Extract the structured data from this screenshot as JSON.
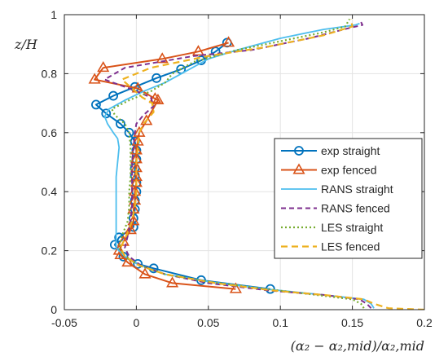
{
  "chart_data": {
    "type": "line",
    "xlabel": "(α₂ − α₂,mid)/α₂,mid",
    "ylabel": "z/H",
    "xlim": [
      -0.05,
      0.2
    ],
    "ylim": [
      0,
      1
    ],
    "xticks": [
      -0.05,
      0,
      0.05,
      0.1,
      0.15,
      0.2
    ],
    "xtick_labels": [
      "-0.05",
      "0",
      "0.05",
      "0.1",
      "0.15",
      "0.2"
    ],
    "yticks": [
      0,
      0.2,
      0.4,
      0.6,
      0.8,
      1
    ],
    "ytick_labels": [
      "0",
      "0.2",
      "0.4",
      "0.6",
      "0.8",
      "1"
    ],
    "grid": true,
    "legend_position": "center-right",
    "series": [
      {
        "name": "exp straight",
        "color": "#0072BD",
        "dash": "",
        "marker": "circle",
        "width": 2,
        "points": [
          [
            0.093,
            0.07
          ],
          [
            0.045,
            0.1
          ],
          [
            0.012,
            0.14
          ],
          [
            0.001,
            0.155
          ],
          [
            -0.009,
            0.18
          ],
          [
            -0.015,
            0.22
          ],
          [
            -0.012,
            0.245
          ],
          [
            -0.002,
            0.28
          ],
          [
            -0.002,
            0.31
          ],
          [
            -0.001,
            0.34
          ],
          [
            -0.001,
            0.37
          ],
          [
            0,
            0.4
          ],
          [
            0,
            0.43
          ],
          [
            -0.001,
            0.455
          ],
          [
            -0.001,
            0.48
          ],
          [
            0,
            0.51
          ],
          [
            0,
            0.54
          ],
          [
            -0.001,
            0.57
          ],
          [
            -0.005,
            0.6
          ],
          [
            -0.011,
            0.63
          ],
          [
            -0.021,
            0.665
          ],
          [
            -0.028,
            0.695
          ],
          [
            -0.016,
            0.725
          ],
          [
            -0.001,
            0.755
          ],
          [
            0.014,
            0.785
          ],
          [
            0.031,
            0.815
          ],
          [
            0.045,
            0.845
          ],
          [
            0.055,
            0.875
          ],
          [
            0.063,
            0.905
          ]
        ]
      },
      {
        "name": "exp fenced",
        "color": "#D95319",
        "dash": "",
        "marker": "triangle",
        "width": 2,
        "points": [
          [
            0.069,
            0.07
          ],
          [
            0.025,
            0.09
          ],
          [
            0.006,
            0.12
          ],
          [
            -0.006,
            0.16
          ],
          [
            -0.011,
            0.185
          ],
          [
            -0.012,
            0.2
          ],
          [
            -0.009,
            0.23
          ],
          [
            -0.004,
            0.27
          ],
          [
            -0.002,
            0.3
          ],
          [
            -0.002,
            0.34
          ],
          [
            -0.001,
            0.37
          ],
          [
            -0.001,
            0.4
          ],
          [
            0,
            0.43
          ],
          [
            0,
            0.45
          ],
          [
            0,
            0.48
          ],
          [
            0,
            0.51
          ],
          [
            0,
            0.54
          ],
          [
            0.001,
            0.57
          ],
          [
            0.002,
            0.6
          ],
          [
            0.007,
            0.64
          ],
          [
            0.015,
            0.71
          ],
          [
            0.013,
            0.715
          ],
          [
            0.001,
            0.75
          ],
          [
            -0.029,
            0.78
          ],
          [
            -0.023,
            0.82
          ],
          [
            0.018,
            0.85
          ],
          [
            0.043,
            0.875
          ],
          [
            0.064,
            0.905
          ]
        ]
      },
      {
        "name": "RANS straight",
        "color": "#4DBEEE",
        "dash": "",
        "marker": "",
        "width": 1.8,
        "points": [
          [
            0.165,
            0.005
          ],
          [
            0.163,
            0.02
          ],
          [
            0.158,
            0.035
          ],
          [
            0.13,
            0.05
          ],
          [
            0.09,
            0.07
          ],
          [
            0.05,
            0.095
          ],
          [
            0.02,
            0.12
          ],
          [
            0.003,
            0.15
          ],
          [
            -0.008,
            0.18
          ],
          [
            -0.014,
            0.21
          ],
          [
            -0.014,
            0.25
          ],
          [
            -0.014,
            0.3
          ],
          [
            -0.014,
            0.35
          ],
          [
            -0.014,
            0.4
          ],
          [
            -0.014,
            0.45
          ],
          [
            -0.013,
            0.5
          ],
          [
            -0.012,
            0.55
          ],
          [
            -0.013,
            0.58
          ],
          [
            -0.016,
            0.6
          ],
          [
            -0.02,
            0.63
          ],
          [
            -0.022,
            0.655
          ],
          [
            -0.019,
            0.68
          ],
          [
            -0.008,
            0.71
          ],
          [
            0.005,
            0.74
          ],
          [
            0.02,
            0.77
          ],
          [
            0.035,
            0.81
          ],
          [
            0.05,
            0.85
          ],
          [
            0.07,
            0.88
          ],
          [
            0.1,
            0.92
          ],
          [
            0.13,
            0.95
          ],
          [
            0.152,
            0.965
          ],
          [
            0.155,
            0.97
          ]
        ]
      },
      {
        "name": "RANS fenced",
        "color": "#7E2F8E",
        "dash": "6,4",
        "marker": "",
        "width": 2,
        "points": [
          [
            0.163,
            0.005
          ],
          [
            0.16,
            0.02
          ],
          [
            0.155,
            0.035
          ],
          [
            0.13,
            0.05
          ],
          [
            0.092,
            0.065
          ],
          [
            0.05,
            0.09
          ],
          [
            0.02,
            0.12
          ],
          [
            0.003,
            0.15
          ],
          [
            -0.005,
            0.18
          ],
          [
            -0.008,
            0.21
          ],
          [
            -0.006,
            0.25
          ],
          [
            -0.004,
            0.3
          ],
          [
            -0.003,
            0.35
          ],
          [
            -0.003,
            0.4
          ],
          [
            -0.003,
            0.45
          ],
          [
            -0.003,
            0.5
          ],
          [
            -0.002,
            0.55
          ],
          [
            -0.001,
            0.6
          ],
          [
            0,
            0.63
          ],
          [
            0.005,
            0.66
          ],
          [
            0.012,
            0.69
          ],
          [
            0.01,
            0.72
          ],
          [
            -0.005,
            0.75
          ],
          [
            -0.022,
            0.78
          ],
          [
            -0.008,
            0.82
          ],
          [
            0.04,
            0.86
          ],
          [
            0.08,
            0.88
          ],
          [
            0.12,
            0.92
          ],
          [
            0.148,
            0.955
          ],
          [
            0.157,
            0.965
          ],
          [
            0.156,
            0.975
          ]
        ]
      },
      {
        "name": "LES straight",
        "color": "#77AC30",
        "dash": "2,3",
        "marker": "",
        "width": 2.2,
        "points": [
          [
            0.158,
            0.005
          ],
          [
            0.156,
            0.02
          ],
          [
            0.15,
            0.035
          ],
          [
            0.125,
            0.05
          ],
          [
            0.09,
            0.07
          ],
          [
            0.05,
            0.095
          ],
          [
            0.02,
            0.12
          ],
          [
            0.002,
            0.15
          ],
          [
            -0.008,
            0.18
          ],
          [
            -0.012,
            0.21
          ],
          [
            -0.01,
            0.25
          ],
          [
            -0.006,
            0.3
          ],
          [
            -0.005,
            0.35
          ],
          [
            -0.005,
            0.4
          ],
          [
            -0.004,
            0.45
          ],
          [
            -0.004,
            0.5
          ],
          [
            -0.004,
            0.55
          ],
          [
            -0.005,
            0.6
          ],
          [
            -0.008,
            0.63
          ],
          [
            -0.015,
            0.66
          ],
          [
            -0.017,
            0.68
          ],
          [
            -0.005,
            0.71
          ],
          [
            0.01,
            0.74
          ],
          [
            0.02,
            0.77
          ],
          [
            0.025,
            0.8
          ],
          [
            0.04,
            0.84
          ],
          [
            0.07,
            0.88
          ],
          [
            0.1,
            0.91
          ],
          [
            0.13,
            0.94
          ],
          [
            0.145,
            0.96
          ],
          [
            0.148,
            0.985
          ]
        ]
      },
      {
        "name": "LES fenced",
        "color": "#EDB120",
        "dash": "8,5",
        "marker": "",
        "width": 2.2,
        "points": [
          [
            0.2,
            0.0
          ],
          [
            0.175,
            0.005
          ],
          [
            0.165,
            0.02
          ],
          [
            0.158,
            0.035
          ],
          [
            0.13,
            0.05
          ],
          [
            0.095,
            0.065
          ],
          [
            0.055,
            0.09
          ],
          [
            0.02,
            0.12
          ],
          [
            0.002,
            0.15
          ],
          [
            -0.008,
            0.18
          ],
          [
            -0.011,
            0.21
          ],
          [
            -0.007,
            0.25
          ],
          [
            -0.003,
            0.3
          ],
          [
            -0.001,
            0.35
          ],
          [
            0,
            0.4
          ],
          [
            0,
            0.45
          ],
          [
            0,
            0.5
          ],
          [
            0.001,
            0.55
          ],
          [
            0.002,
            0.6
          ],
          [
            0.005,
            0.63
          ],
          [
            0.012,
            0.67
          ],
          [
            0.011,
            0.7
          ],
          [
            0.004,
            0.72
          ],
          [
            -0.003,
            0.75
          ],
          [
            -0.01,
            0.78
          ],
          [
            0.01,
            0.82
          ],
          [
            0.05,
            0.86
          ],
          [
            0.09,
            0.89
          ],
          [
            0.13,
            0.93
          ],
          [
            0.15,
            0.96
          ],
          [
            0.149,
            0.985
          ]
        ]
      }
    ]
  }
}
